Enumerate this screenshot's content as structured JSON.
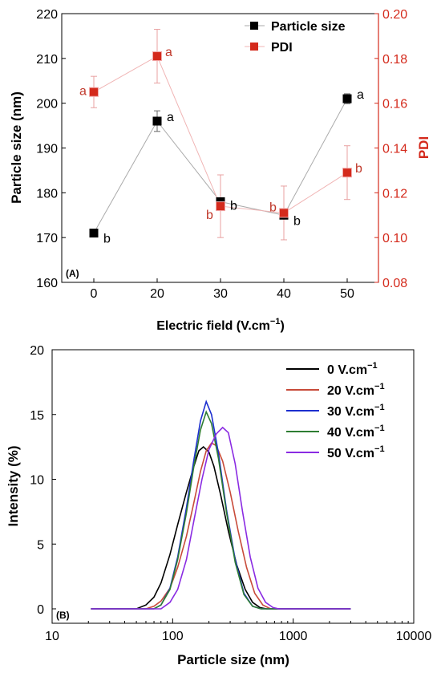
{
  "chart_data": [
    {
      "type": "scatter",
      "panel_label": "(A)",
      "xlabel": "Electric field (V.cm",
      "xlabel_sup": "−1",
      "xlabel_tail": ")",
      "ylabel": "Particle size (nm)",
      "y2label": "PDI",
      "x_ticks": [
        "0",
        "20",
        "30",
        "40",
        "50"
      ],
      "y_ticks": [
        "160",
        "170",
        "180",
        "190",
        "200",
        "210",
        "220"
      ],
      "y2_ticks": [
        "0.08",
        "0.10",
        "0.12",
        "0.14",
        "0.16",
        "0.18",
        "0.20"
      ],
      "ylim": [
        160,
        220
      ],
      "y2lim": [
        0.08,
        0.2
      ],
      "legend_position": "top-right",
      "series": [
        {
          "name": "Particle size",
          "axis": "left",
          "color": "#000000",
          "line_color": "#aaaaaa",
          "points": [
            {
              "x": "0",
              "y": 171,
              "err": 0.8,
              "label": "b"
            },
            {
              "x": "20",
              "y": 196,
              "err": 2.3,
              "label": "a"
            },
            {
              "x": "30",
              "y": 178,
              "err": 0.8,
              "label": "b"
            },
            {
              "x": "40",
              "y": 175,
              "err": 0.8,
              "label": "b"
            },
            {
              "x": "50",
              "y": 201,
              "err": 1.1,
              "label": "a"
            }
          ]
        },
        {
          "name": "PDI",
          "axis": "right",
          "color": "#d42a1c",
          "line_color": "#f0b4b4",
          "points": [
            {
              "x": "0",
              "y": 0.165,
              "err": 0.007,
              "label": "a"
            },
            {
              "x": "20",
              "y": 0.181,
              "err": 0.012,
              "label": "a"
            },
            {
              "x": "30",
              "y": 0.114,
              "err": 0.014,
              "label": "b"
            },
            {
              "x": "40",
              "y": 0.111,
              "err": 0.012,
              "label": "b"
            },
            {
              "x": "50",
              "y": 0.129,
              "err": 0.012,
              "label": "b"
            }
          ]
        }
      ]
    },
    {
      "type": "line",
      "panel_label": "(B)",
      "xlabel": "Particle size (nm)",
      "ylabel": "Intensity (%)",
      "x_scale": "log",
      "xlim": [
        10,
        10000
      ],
      "ylim": [
        0,
        20
      ],
      "x_ticks": [
        "10",
        "100",
        "1000",
        "10000"
      ],
      "y_ticks": [
        "0",
        "5",
        "10",
        "15",
        "20"
      ],
      "legend_position": "top-right",
      "series": [
        {
          "name": "0 V.cm",
          "name_sup": "−1",
          "color": "#000000",
          "x": [
            21,
            50,
            60,
            70,
            80,
            95,
            110,
            130,
            150,
            165,
            180,
            200,
            220,
            250,
            290,
            340,
            400,
            460,
            530,
            600,
            3000
          ],
          "y": [
            0,
            0,
            0.3,
            0.9,
            2.0,
            4.2,
            6.5,
            9.0,
            11.0,
            12.2,
            12.5,
            12.1,
            11.0,
            8.8,
            6.0,
            3.4,
            1.5,
            0.5,
            0.1,
            0,
            0
          ]
        },
        {
          "name": "20 V.cm",
          "name_sup": "−1",
          "color": "#c84b3a",
          "x": [
            21,
            60,
            70,
            80,
            95,
            110,
            130,
            150,
            170,
            190,
            210,
            230,
            260,
            300,
            350,
            410,
            480,
            560,
            650,
            3000
          ],
          "y": [
            0,
            0,
            0.2,
            0.6,
            1.6,
            3.2,
            5.6,
            8.2,
            10.6,
            12.2,
            12.8,
            12.6,
            11.4,
            9.0,
            6.0,
            3.2,
            1.2,
            0.3,
            0,
            0
          ]
        },
        {
          "name": "30 V.cm",
          "name_sup": "−1",
          "color": "#1c2fcf",
          "x": [
            21,
            70,
            80,
            95,
            110,
            130,
            150,
            170,
            190,
            210,
            240,
            280,
            330,
            390,
            460,
            540,
            3000
          ],
          "y": [
            0,
            0,
            0.3,
            1.6,
            4.0,
            7.8,
            11.5,
            14.5,
            16.0,
            15.0,
            12.0,
            7.6,
            3.8,
            1.2,
            0.2,
            0,
            0
          ]
        },
        {
          "name": "40 V.cm",
          "name_sup": "−1",
          "color": "#2e7d32",
          "x": [
            21,
            70,
            80,
            95,
            110,
            130,
            150,
            170,
            190,
            210,
            240,
            280,
            330,
            390,
            460,
            540,
            3000
          ],
          "y": [
            0,
            0,
            0.3,
            1.5,
            3.8,
            7.4,
            11.0,
            13.8,
            15.2,
            14.3,
            11.6,
            7.4,
            3.6,
            1.1,
            0.2,
            0,
            0
          ]
        },
        {
          "name": "50 V.cm",
          "name_sup": "−1",
          "color": "#8a2be2",
          "x": [
            21,
            80,
            95,
            110,
            130,
            150,
            175,
            200,
            230,
            260,
            290,
            330,
            380,
            440,
            510,
            590,
            680,
            760,
            3000
          ],
          "y": [
            0,
            0,
            0.5,
            1.5,
            3.8,
            6.8,
            10.0,
            12.3,
            13.5,
            14.0,
            13.6,
            11.2,
            7.5,
            4.0,
            1.6,
            0.5,
            0.1,
            0,
            0
          ]
        }
      ]
    }
  ]
}
